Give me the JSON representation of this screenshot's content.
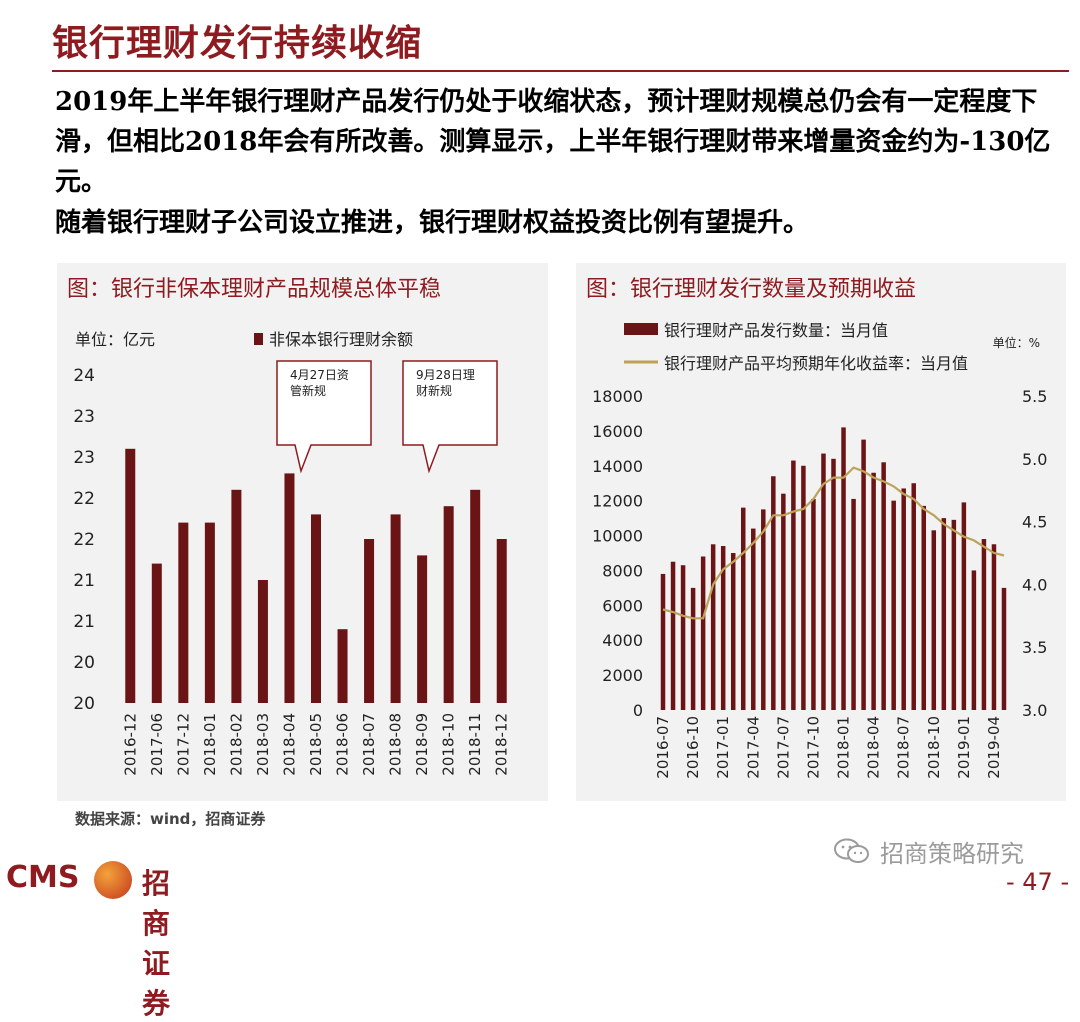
{
  "page": {
    "title": "银行理财发行持续收缩",
    "para1": "2019年上半年银行理财产品发行仍处于收缩状态，预计理财规模总仍会有一定程度下滑，但相比2018年会有所改善。测算显示，上半年银行理财带来增量资金约为-130亿元。",
    "para2": "随着银行理财子公司设立推进，银行理财权益投资比例有望提升。",
    "source": "数据来源：wind，招商证券",
    "logo_cms": "CMS",
    "logo_text": "招商证券",
    "watermark": "招商策略研究",
    "page_number": "- 47 -"
  },
  "colors": {
    "brand": "#8e1b1f",
    "bar": "#6b1416",
    "line": "#bfa25a",
    "panel_bg": "#f2f2f2"
  },
  "chart_data": [
    {
      "type": "bar",
      "title": "图：银行非保本理财产品规模总体平稳",
      "unit_label": "单位：亿元",
      "legend": "非保本银行理财余额",
      "categories": [
        "2016-12",
        "2017-06",
        "2017-12",
        "2018-01",
        "2018-02",
        "2018-03",
        "2018-04",
        "2018-05",
        "2018-06",
        "2018-07",
        "2018-08",
        "2018-09",
        "2018-10",
        "2018-11",
        "2018-12"
      ],
      "values": [
        23.1,
        21.7,
        22.2,
        22.2,
        22.6,
        21.5,
        22.8,
        22.3,
        20.9,
        22.0,
        22.3,
        21.8,
        22.4,
        22.6,
        22.0
      ],
      "ylim": [
        20,
        24
      ],
      "ytick_values": [
        20,
        20.5,
        21,
        21.5,
        22,
        22.5,
        23,
        23.5,
        24
      ],
      "ytick_labels": [
        "20",
        "20",
        "21",
        "21",
        "22",
        "22",
        "23",
        "23",
        "24"
      ],
      "annotations": [
        {
          "text_line1": "4月27日资",
          "text_line2": "管新规"
        },
        {
          "text_line1": "9月28日理",
          "text_line2": "财新规"
        }
      ]
    },
    {
      "type": "bar+line",
      "title": "图：银行理财发行数量及预期收益",
      "unit_label": "单位：%",
      "legend_bar": "银行理财产品发行数量：当月值",
      "legend_line": "银行理财产品平均预期年化收益率：当月值",
      "x_tick_labels": [
        "2016-07",
        "2016-10",
        "2017-01",
        "2017-04",
        "2017-07",
        "2017-10",
        "2018-01",
        "2018-04",
        "2018-07",
        "2018-10",
        "2019-01",
        "2019-04"
      ],
      "bar_values": [
        7800,
        8500,
        8300,
        7000,
        8800,
        9500,
        9400,
        9000,
        11600,
        10400,
        11500,
        13400,
        12400,
        14300,
        14000,
        12100,
        14700,
        14400,
        16200,
        12100,
        15500,
        13600,
        14200,
        12000,
        12700,
        13000,
        11700,
        10300,
        11000,
        10900,
        11900,
        8000,
        9800,
        9500,
        7000
      ],
      "line_values": [
        3.8,
        3.78,
        3.75,
        3.73,
        3.73,
        4.0,
        4.12,
        4.18,
        4.25,
        4.33,
        4.42,
        4.55,
        4.55,
        4.58,
        4.6,
        4.68,
        4.8,
        4.85,
        4.85,
        4.93,
        4.9,
        4.85,
        4.82,
        4.78,
        4.72,
        4.68,
        4.6,
        4.55,
        4.48,
        4.43,
        4.38,
        4.35,
        4.3,
        4.25,
        4.23
      ],
      "ylim_left": [
        0,
        18000
      ],
      "ytick_left": [
        "0",
        "2000",
        "4000",
        "6000",
        "8000",
        "10000",
        "12000",
        "14000",
        "16000",
        "18000"
      ],
      "ylim_right": [
        3.0,
        5.5
      ],
      "ytick_right": [
        "3.0",
        "3.5",
        "4.0",
        "4.5",
        "5.0",
        "5.5"
      ]
    }
  ]
}
